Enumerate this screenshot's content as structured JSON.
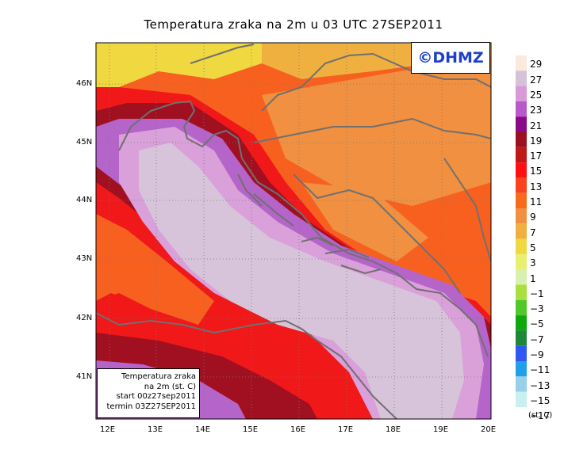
{
  "title": "Temperatura zraka na 2m u 03 UTC 27SEP2011",
  "watermark": "©DHMZ",
  "info_box": {
    "line1": "Temperatura zraka",
    "line2": "na 2m (st. C)",
    "line3": "start 00z27sep2011",
    "line4": "termin 03Z27SEP2011"
  },
  "x_axis": [
    "12E",
    "13E",
    "14E",
    "15E",
    "16E",
    "17E",
    "18E",
    "19E",
    "20E"
  ],
  "y_axis": [
    "46N",
    "45N",
    "44N",
    "43N",
    "42N",
    "41N"
  ],
  "colorbar": {
    "unit": "(st. C)",
    "labels": [
      "29",
      "27",
      "25",
      "23",
      "21",
      "19",
      "17",
      "15",
      "13",
      "11",
      "9",
      "7",
      "5",
      "3",
      "1",
      "−1",
      "−3",
      "−5",
      "−7",
      "−9",
      "−11",
      "−13",
      "−15",
      "−17"
    ],
    "colors": [
      "#fbe9dc",
      "#d6c2d8",
      "#d89bd8",
      "#b85ac8",
      "#8a0a8a",
      "#9a1020",
      "#c01818",
      "#ff1010",
      "#f8431c",
      "#f86a1c",
      "#f09040",
      "#f0b040",
      "#f0d840",
      "#e8f070",
      "#d8f0b0",
      "#a8e040",
      "#50c828",
      "#10a810",
      "#1e8838",
      "#3058f0",
      "#20a0e8",
      "#98d0e8",
      "#c8f0f0"
    ]
  },
  "colors": {
    "sea_light": "#d8c4da",
    "sea_mid": "#d9a0d9",
    "coast_purple": "#b564c9",
    "red": "#f01818",
    "darkred": "#a01020",
    "orange": "#f86020",
    "light_orange": "#f09040",
    "yellow": "#f0d840",
    "border": "#707070"
  }
}
